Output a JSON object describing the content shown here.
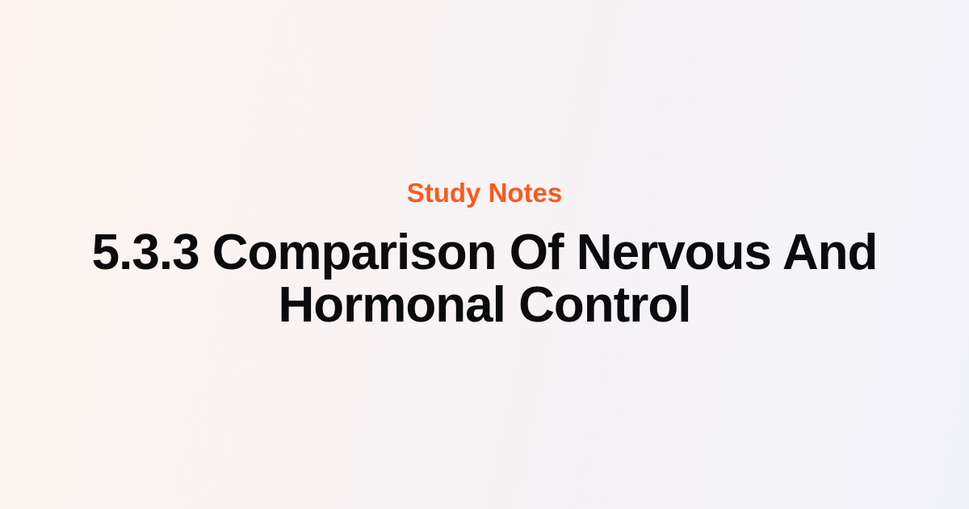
{
  "card": {
    "eyebrow": "Study Notes",
    "title_line1": "5.3.3 Comparison Of Nervous And",
    "title_line2": "Hormonal Control",
    "title_full": "5.3.3 Comparison Of Nervous And Hormonal Control"
  },
  "colors": {
    "accent_orange": "#F85A1E",
    "title_black": "#0B0B0E",
    "bg_left": "#FDF4F0",
    "bg_mid": "#F8F3F4",
    "bg_right": "#F3F4FB"
  }
}
